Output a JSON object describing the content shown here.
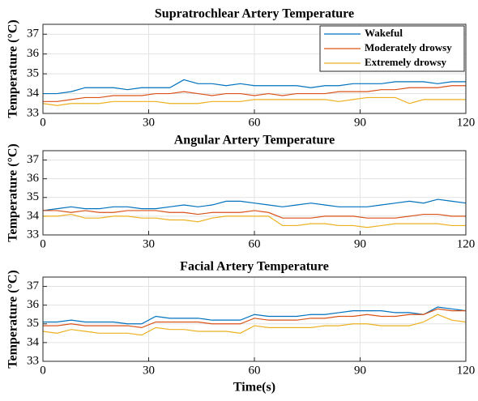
{
  "chart_data": [
    {
      "type": "line",
      "title": "Supratrochlear Artery Temperature",
      "ylabel": "Temperature (°C)",
      "x": [
        0,
        4,
        8,
        12,
        16,
        20,
        24,
        28,
        32,
        36,
        40,
        44,
        48,
        52,
        56,
        60,
        64,
        68,
        72,
        76,
        80,
        84,
        88,
        92,
        96,
        100,
        104,
        108,
        112,
        116,
        120
      ],
      "xlim": [
        0,
        120
      ],
      "xticks": [
        0,
        30,
        60,
        90,
        120
      ],
      "ylim": [
        33,
        37.5
      ],
      "yticks": [
        33,
        34,
        35,
        36,
        37
      ],
      "grid": true,
      "legend": "upper right",
      "series": [
        {
          "name": "Wakeful",
          "color": "#0072bd",
          "values": [
            34.0,
            34.0,
            34.1,
            34.3,
            34.3,
            34.3,
            34.2,
            34.3,
            34.3,
            34.3,
            34.7,
            34.5,
            34.5,
            34.4,
            34.5,
            34.4,
            34.4,
            34.4,
            34.4,
            34.3,
            34.4,
            34.4,
            34.5,
            34.5,
            34.5,
            34.6,
            34.6,
            34.6,
            34.5,
            34.6,
            34.6
          ]
        },
        {
          "name": "Moderately drowsy",
          "color": "#d95319",
          "values": [
            33.6,
            33.6,
            33.7,
            33.8,
            33.8,
            33.9,
            33.9,
            33.9,
            34.0,
            34.0,
            34.1,
            34.0,
            33.9,
            34.0,
            34.0,
            33.9,
            34.0,
            33.9,
            34.0,
            34.0,
            34.0,
            34.1,
            34.1,
            34.1,
            34.2,
            34.2,
            34.3,
            34.3,
            34.3,
            34.4,
            34.4
          ]
        },
        {
          "name": "Extremely drowsy",
          "color": "#edb120",
          "values": [
            33.5,
            33.4,
            33.5,
            33.5,
            33.5,
            33.6,
            33.6,
            33.6,
            33.6,
            33.5,
            33.5,
            33.5,
            33.6,
            33.6,
            33.6,
            33.7,
            33.7,
            33.7,
            33.7,
            33.7,
            33.7,
            33.6,
            33.7,
            33.8,
            33.8,
            33.8,
            33.5,
            33.7,
            33.7,
            33.7,
            33.7
          ]
        }
      ]
    },
    {
      "type": "line",
      "title": "Angular Artery Temperature",
      "ylabel": "Temperature (°C)",
      "x": [
        0,
        4,
        8,
        12,
        16,
        20,
        24,
        28,
        32,
        36,
        40,
        44,
        48,
        52,
        56,
        60,
        64,
        68,
        72,
        76,
        80,
        84,
        88,
        92,
        96,
        100,
        104,
        108,
        112,
        116,
        120
      ],
      "xlim": [
        0,
        120
      ],
      "xticks": [
        0,
        30,
        60,
        90,
        120
      ],
      "ylim": [
        33,
        37.5
      ],
      "yticks": [
        33,
        34,
        35,
        36,
        37
      ],
      "grid": true,
      "series": [
        {
          "color": "#0072bd",
          "values": [
            34.3,
            34.4,
            34.5,
            34.4,
            34.4,
            34.5,
            34.5,
            34.4,
            34.4,
            34.5,
            34.6,
            34.5,
            34.6,
            34.8,
            34.8,
            34.7,
            34.6,
            34.5,
            34.6,
            34.7,
            34.6,
            34.5,
            34.5,
            34.5,
            34.6,
            34.7,
            34.8,
            34.7,
            34.9,
            34.8,
            34.7
          ]
        },
        {
          "color": "#d95319",
          "values": [
            34.3,
            34.3,
            34.2,
            34.3,
            34.2,
            34.2,
            34.3,
            34.3,
            34.3,
            34.2,
            34.2,
            34.1,
            34.2,
            34.2,
            34.2,
            34.3,
            34.2,
            33.9,
            33.9,
            33.9,
            34.0,
            34.0,
            34.0,
            33.9,
            33.9,
            33.9,
            34.0,
            34.1,
            34.1,
            34.0,
            34.0
          ]
        },
        {
          "color": "#edb120",
          "values": [
            34.0,
            34.0,
            34.1,
            33.9,
            33.9,
            34.0,
            34.0,
            33.9,
            33.9,
            33.8,
            33.8,
            33.7,
            33.9,
            34.0,
            34.0,
            34.0,
            34.0,
            33.5,
            33.5,
            33.6,
            33.6,
            33.5,
            33.5,
            33.4,
            33.5,
            33.6,
            33.6,
            33.6,
            33.6,
            33.5,
            33.5
          ]
        }
      ]
    },
    {
      "type": "line",
      "title": "Facial Artery Temperature",
      "ylabel": "Temperature (°C)",
      "xlabel": "Time(s)",
      "x": [
        0,
        4,
        8,
        12,
        16,
        20,
        24,
        28,
        32,
        36,
        40,
        44,
        48,
        52,
        56,
        60,
        64,
        68,
        72,
        76,
        80,
        84,
        88,
        92,
        96,
        100,
        104,
        108,
        112,
        116,
        120
      ],
      "xlim": [
        0,
        120
      ],
      "xticks": [
        0,
        30,
        60,
        90,
        120
      ],
      "ylim": [
        33,
        37.5
      ],
      "yticks": [
        33,
        34,
        35,
        36,
        37
      ],
      "grid": true,
      "series": [
        {
          "color": "#0072bd",
          "values": [
            35.1,
            35.1,
            35.2,
            35.1,
            35.1,
            35.1,
            35.0,
            35.0,
            35.4,
            35.3,
            35.3,
            35.3,
            35.2,
            35.2,
            35.2,
            35.5,
            35.4,
            35.4,
            35.4,
            35.5,
            35.5,
            35.6,
            35.7,
            35.7,
            35.7,
            35.6,
            35.6,
            35.5,
            35.9,
            35.8,
            35.7
          ]
        },
        {
          "color": "#d95319",
          "values": [
            34.9,
            34.9,
            35.0,
            34.9,
            34.9,
            34.9,
            34.9,
            34.8,
            35.1,
            35.1,
            35.1,
            35.1,
            35.0,
            35.0,
            35.0,
            35.3,
            35.2,
            35.2,
            35.2,
            35.3,
            35.3,
            35.4,
            35.4,
            35.5,
            35.4,
            35.4,
            35.5,
            35.5,
            35.8,
            35.7,
            35.7
          ]
        },
        {
          "color": "#edb120",
          "values": [
            34.6,
            34.5,
            34.7,
            34.6,
            34.5,
            34.5,
            34.5,
            34.4,
            34.8,
            34.7,
            34.7,
            34.6,
            34.6,
            34.6,
            34.5,
            34.9,
            34.8,
            34.8,
            34.8,
            34.8,
            34.9,
            34.9,
            35.0,
            35.0,
            34.9,
            34.9,
            34.9,
            35.1,
            35.5,
            35.2,
            35.1
          ]
        }
      ]
    }
  ]
}
